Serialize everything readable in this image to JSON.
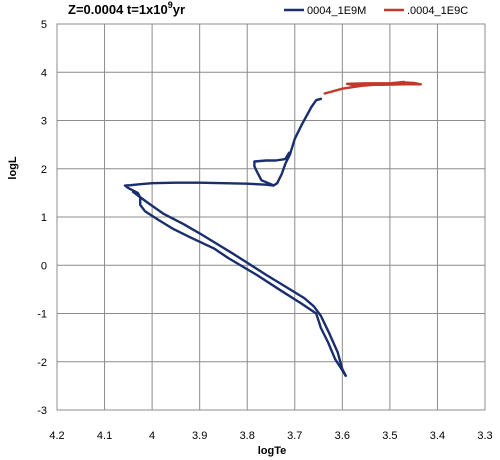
{
  "chart_data": {
    "type": "line",
    "title": "Z=0.0004 t=1x10",
    "title_sup": "9",
    "title_tail": "yr",
    "xlabel": "logTe",
    "ylabel": "logL",
    "xlim": [
      4.2,
      3.3
    ],
    "ylim": [
      -3,
      5
    ],
    "x_reversed": true,
    "grid": true,
    "legend_position": "top-right",
    "x_ticks": [
      4.2,
      4.1,
      4,
      3.9,
      3.8,
      3.7,
      3.6,
      3.5,
      3.4,
      3.3
    ],
    "x_tick_labels": [
      "4.2",
      "4.1",
      "4",
      "3.9",
      "3.8",
      "3.7",
      "3.6",
      "3.5",
      "3.4",
      "3.3"
    ],
    "y_ticks": [
      -3,
      -2,
      -1,
      0,
      1,
      2,
      3,
      4,
      5
    ],
    "y_tick_labels": [
      "-3",
      "-2",
      "-1",
      "0",
      "1",
      "2",
      "3",
      "4",
      "5"
    ],
    "series": [
      {
        "name": "0004_1E9M",
        "color": "#1a2e6e",
        "points": [
          [
            3.593,
            -2.29
          ],
          [
            3.605,
            -2.1
          ],
          [
            3.615,
            -1.95
          ],
          [
            3.63,
            -1.6
          ],
          [
            3.645,
            -1.3
          ],
          [
            3.655,
            -1.0
          ],
          [
            3.685,
            -0.8
          ],
          [
            3.73,
            -0.52
          ],
          [
            3.78,
            -0.2
          ],
          [
            3.84,
            0.15
          ],
          [
            3.87,
            0.35
          ],
          [
            3.92,
            0.58
          ],
          [
            3.955,
            0.75
          ],
          [
            3.985,
            0.93
          ],
          [
            4.015,
            1.12
          ],
          [
            4.025,
            1.25
          ],
          [
            4.025,
            1.4
          ],
          [
            4.03,
            1.5
          ],
          [
            4.05,
            1.6
          ],
          [
            4.057,
            1.65
          ],
          [
            4.045,
            1.66
          ],
          [
            4.025,
            1.68
          ],
          [
            4.0,
            1.7
          ],
          [
            3.95,
            1.71
          ],
          [
            3.9,
            1.71
          ],
          [
            3.85,
            1.7
          ],
          [
            3.8,
            1.69
          ],
          [
            3.76,
            1.67
          ],
          [
            3.745,
            1.65
          ],
          [
            3.737,
            1.7
          ],
          [
            3.727,
            1.9
          ],
          [
            3.72,
            2.1
          ],
          [
            3.71,
            2.3
          ],
          [
            3.7,
            2.62
          ],
          [
            3.685,
            2.92
          ],
          [
            3.665,
            3.28
          ],
          [
            3.655,
            3.42
          ],
          [
            3.645,
            3.45
          ]
        ],
        "branch_points": [
          [
            4.04,
            1.52
          ],
          [
            4.01,
            1.3
          ],
          [
            3.975,
            1.06
          ],
          [
            3.935,
            0.86
          ],
          [
            3.9,
            0.66
          ],
          [
            3.865,
            0.45
          ],
          [
            3.83,
            0.24
          ],
          [
            3.795,
            0.02
          ],
          [
            3.76,
            -0.2
          ],
          [
            3.72,
            -0.44
          ],
          [
            3.68,
            -0.68
          ],
          [
            3.66,
            -0.85
          ],
          [
            3.645,
            -1.05
          ],
          [
            3.628,
            -1.4
          ],
          [
            3.61,
            -1.8
          ],
          [
            3.6,
            -2.15
          ],
          [
            3.593,
            -2.29
          ]
        ],
        "loop_points": [
          [
            3.745,
            1.66
          ],
          [
            3.77,
            1.76
          ],
          [
            3.78,
            1.95
          ],
          [
            3.785,
            2.05
          ],
          [
            3.785,
            2.15
          ],
          [
            3.76,
            2.17
          ],
          [
            3.74,
            2.17
          ],
          [
            3.72,
            2.2
          ],
          [
            3.712,
            2.33
          ]
        ]
      },
      {
        "name": ".0004_1E9C",
        "color": "#c0392b",
        "points": [
          [
            3.637,
            3.56
          ],
          [
            3.6,
            3.66
          ],
          [
            3.56,
            3.72
          ],
          [
            3.52,
            3.75
          ],
          [
            3.49,
            3.78
          ],
          [
            3.47,
            3.79
          ],
          [
            3.45,
            3.78
          ],
          [
            3.435,
            3.75
          ],
          [
            3.47,
            3.75
          ],
          [
            3.52,
            3.74
          ],
          [
            3.58,
            3.74
          ],
          [
            3.59,
            3.76
          ],
          [
            3.55,
            3.77
          ],
          [
            3.5,
            3.77
          ],
          [
            3.47,
            3.8
          ]
        ]
      }
    ]
  }
}
